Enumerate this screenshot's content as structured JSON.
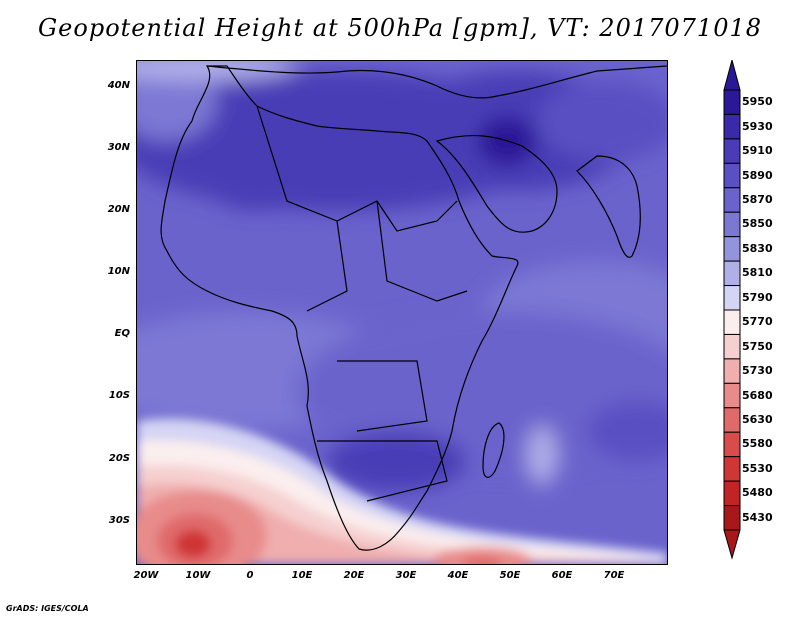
{
  "title": "Geopotential Height at 500hPa [gpm], VT: 2017071018",
  "credit": "GrADS: IGES/COLA",
  "lat_labels": [
    "40N",
    "30N",
    "20N",
    "10N",
    "EQ",
    "10S",
    "20S",
    "30S"
  ],
  "lon_labels": [
    "20W",
    "10W",
    "0",
    "10E",
    "20E",
    "30E",
    "40E",
    "50E",
    "60E",
    "70E"
  ],
  "colorbar": {
    "levels": [
      "5950",
      "5930",
      "5910",
      "5890",
      "5870",
      "5850",
      "5830",
      "5810",
      "5790",
      "5770",
      "5750",
      "5730",
      "5680",
      "5630",
      "5580",
      "5530",
      "5480",
      "5430"
    ],
    "colors": [
      "#2a1896",
      "#3a29a8",
      "#4a3cb6",
      "#5a50c2",
      "#6a63cc",
      "#7b78d4",
      "#9493dd",
      "#b0afe8",
      "#d4d4f4",
      "#fbeeee",
      "#f6d0d0",
      "#f0aeae",
      "#e88b8b",
      "#e06a6a",
      "#d84c4c",
      "#cf3636",
      "#c02424",
      "#a81818"
    ]
  }
}
